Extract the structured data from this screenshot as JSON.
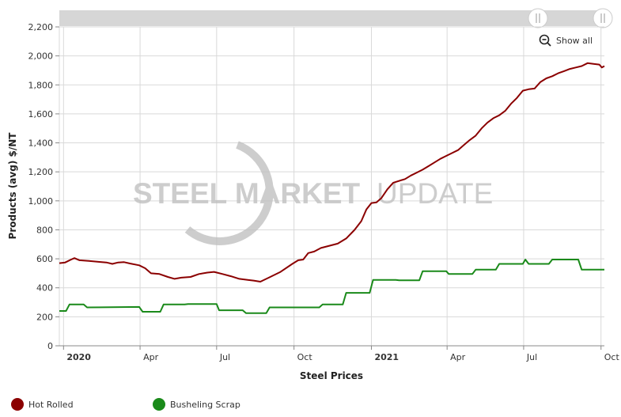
{
  "colors": {
    "hot_rolled": "#8b0000",
    "busheling": "#1a8a1a",
    "grid": "#d9d9d9",
    "navigator": "#d6d6d6",
    "watermark": "#bdbdbd"
  },
  "toolbar": {
    "show_all_label": "Show all",
    "show_all_icon": "zoom-out-icon"
  },
  "watermark": {
    "word1": "STEEL MARKET",
    "word2": "UPDATE"
  },
  "chart_data": {
    "type": "line",
    "xlabel": "Steel Prices",
    "ylabel": "Products (avg) $/NT",
    "ylim": [
      0,
      2200
    ],
    "yticks": [
      0,
      200,
      400,
      600,
      800,
      1000,
      1200,
      1400,
      1600,
      1800,
      2000,
      2200
    ],
    "ytick_labels": [
      "0",
      "200",
      "400",
      "600",
      "800",
      "1,000",
      "1,200",
      "1,400",
      "1,600",
      "1,800",
      "2,000",
      "2,200"
    ],
    "xlim": [
      "2019-12-27",
      "2021-10-05"
    ],
    "xticks": [
      {
        "date": "2020-01-01",
        "label": "2020",
        "bold": true
      },
      {
        "date": "2020-04-01",
        "label": "Apr",
        "bold": false
      },
      {
        "date": "2020-07-01",
        "label": "Jul",
        "bold": false
      },
      {
        "date": "2020-10-01",
        "label": "Oct",
        "bold": false
      },
      {
        "date": "2021-01-01",
        "label": "2021",
        "bold": true
      },
      {
        "date": "2021-04-01",
        "label": "Apr",
        "bold": false
      },
      {
        "date": "2021-07-01",
        "label": "Jul",
        "bold": false
      },
      {
        "date": "2021-10-01",
        "label": "Oct",
        "bold": false
      }
    ],
    "grid": true,
    "legend_position": "bottom-left",
    "series": [
      {
        "name": "Hot Rolled",
        "color": "#8b0000",
        "points": [
          [
            "2019-12-27",
            570
          ],
          [
            "2020-01-03",
            575
          ],
          [
            "2020-01-10",
            595
          ],
          [
            "2020-01-14",
            605
          ],
          [
            "2020-01-20",
            590
          ],
          [
            "2020-01-31",
            585
          ],
          [
            "2020-02-14",
            578
          ],
          [
            "2020-02-21",
            575
          ],
          [
            "2020-02-28",
            565
          ],
          [
            "2020-03-06",
            575
          ],
          [
            "2020-03-13",
            577
          ],
          [
            "2020-03-20",
            568
          ],
          [
            "2020-03-31",
            555
          ],
          [
            "2020-04-07",
            535
          ],
          [
            "2020-04-14",
            500
          ],
          [
            "2020-04-24",
            495
          ],
          [
            "2020-05-04",
            475
          ],
          [
            "2020-05-12",
            462
          ],
          [
            "2020-05-20",
            470
          ],
          [
            "2020-05-31",
            475
          ],
          [
            "2020-06-10",
            495
          ],
          [
            "2020-06-20",
            505
          ],
          [
            "2020-06-28",
            510
          ],
          [
            "2020-07-08",
            495
          ],
          [
            "2020-07-18",
            480
          ],
          [
            "2020-07-28",
            462
          ],
          [
            "2020-08-07",
            455
          ],
          [
            "2020-08-14",
            450
          ],
          [
            "2020-08-22",
            442
          ],
          [
            "2020-09-01",
            470
          ],
          [
            "2020-09-15",
            510
          ],
          [
            "2020-09-29",
            565
          ],
          [
            "2020-10-06",
            590
          ],
          [
            "2020-10-12",
            595
          ],
          [
            "2020-10-18",
            640
          ],
          [
            "2020-10-25",
            650
          ],
          [
            "2020-11-02",
            675
          ],
          [
            "2020-11-12",
            690
          ],
          [
            "2020-11-22",
            705
          ],
          [
            "2020-12-02",
            740
          ],
          [
            "2020-12-12",
            800
          ],
          [
            "2020-12-20",
            860
          ],
          [
            "2020-12-26",
            940
          ],
          [
            "2021-01-01",
            985
          ],
          [
            "2021-01-07",
            990
          ],
          [
            "2021-01-13",
            1020
          ],
          [
            "2021-01-20",
            1080
          ],
          [
            "2021-01-27",
            1125
          ],
          [
            "2021-02-10",
            1150
          ],
          [
            "2021-02-17",
            1175
          ],
          [
            "2021-02-24",
            1195
          ],
          [
            "2021-03-03",
            1215
          ],
          [
            "2021-03-10",
            1240
          ],
          [
            "2021-03-17",
            1265
          ],
          [
            "2021-03-24",
            1290
          ],
          [
            "2021-03-31",
            1310
          ],
          [
            "2021-04-07",
            1330
          ],
          [
            "2021-04-14",
            1350
          ],
          [
            "2021-04-21",
            1385
          ],
          [
            "2021-04-28",
            1420
          ],
          [
            "2021-05-05",
            1450
          ],
          [
            "2021-05-12",
            1500
          ],
          [
            "2021-05-19",
            1540
          ],
          [
            "2021-05-26",
            1570
          ],
          [
            "2021-06-02",
            1590
          ],
          [
            "2021-06-09",
            1620
          ],
          [
            "2021-06-16",
            1670
          ],
          [
            "2021-06-23",
            1710
          ],
          [
            "2021-06-30",
            1760
          ],
          [
            "2021-07-07",
            1770
          ],
          [
            "2021-07-14",
            1775
          ],
          [
            "2021-07-21",
            1820
          ],
          [
            "2021-07-28",
            1845
          ],
          [
            "2021-08-04",
            1860
          ],
          [
            "2021-08-11",
            1880
          ],
          [
            "2021-08-18",
            1895
          ],
          [
            "2021-08-25",
            1910
          ],
          [
            "2021-09-01",
            1920
          ],
          [
            "2021-09-08",
            1930
          ],
          [
            "2021-09-15",
            1950
          ],
          [
            "2021-09-22",
            1945
          ],
          [
            "2021-09-29",
            1940
          ],
          [
            "2021-10-02",
            1920
          ],
          [
            "2021-10-05",
            1930
          ]
        ]
      },
      {
        "name": "Busheling Scrap",
        "color": "#1a8a1a",
        "points": [
          [
            "2019-12-27",
            240
          ],
          [
            "2020-01-04",
            240
          ],
          [
            "2020-01-08",
            285
          ],
          [
            "2020-01-25",
            285
          ],
          [
            "2020-01-29",
            265
          ],
          [
            "2020-03-31",
            268
          ],
          [
            "2020-04-04",
            235
          ],
          [
            "2020-04-25",
            235
          ],
          [
            "2020-04-29",
            285
          ],
          [
            "2020-05-24",
            285
          ],
          [
            "2020-05-28",
            288
          ],
          [
            "2020-07-01",
            288
          ],
          [
            "2020-07-04",
            245
          ],
          [
            "2020-08-01",
            245
          ],
          [
            "2020-08-05",
            225
          ],
          [
            "2020-08-29",
            225
          ],
          [
            "2020-09-02",
            265
          ],
          [
            "2020-10-31",
            265
          ],
          [
            "2020-11-04",
            285
          ],
          [
            "2020-11-28",
            285
          ],
          [
            "2020-12-02",
            365
          ],
          [
            "2020-12-30",
            365
          ],
          [
            "2021-01-03",
            455
          ],
          [
            "2021-01-30",
            455
          ],
          [
            "2021-02-03",
            452
          ],
          [
            "2021-02-27",
            452
          ],
          [
            "2021-03-03",
            515
          ],
          [
            "2021-03-31",
            515
          ],
          [
            "2021-04-03",
            495
          ],
          [
            "2021-05-01",
            495
          ],
          [
            "2021-05-05",
            525
          ],
          [
            "2021-05-29",
            525
          ],
          [
            "2021-06-02",
            565
          ],
          [
            "2021-06-30",
            565
          ],
          [
            "2021-07-03",
            595
          ],
          [
            "2021-07-07",
            565
          ],
          [
            "2021-07-31",
            565
          ],
          [
            "2021-08-04",
            595
          ],
          [
            "2021-09-04",
            595
          ],
          [
            "2021-09-08",
            525
          ],
          [
            "2021-10-05",
            525
          ]
        ]
      }
    ]
  }
}
